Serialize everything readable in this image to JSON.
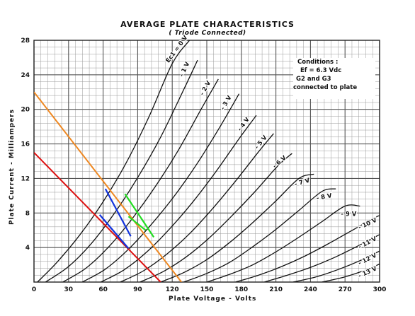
{
  "chart_data": {
    "type": "line",
    "title": "AVERAGE PLATE CHARACTERISTICS",
    "subtitle": "( Triode Connected)",
    "xlabel": "Plate Voltage - Volts",
    "ylabel": "Plate Current - Milliampers",
    "xlim": [
      0,
      300
    ],
    "ylim": [
      0,
      28
    ],
    "xticks": [
      "0",
      "30",
      "60",
      "90",
      "120",
      "150",
      "180",
      "210",
      "240",
      "270",
      "300"
    ],
    "yticks": [
      "4",
      "8",
      "12",
      "16",
      "20",
      "24",
      "28"
    ],
    "grid": true,
    "conditions": [
      "Conditions :",
      "Ef = 6.3 Vdc",
      "G2 and G3",
      "connected to plate"
    ],
    "series": [
      {
        "name": "Ec1 = 0 V",
        "x": [
          3,
          20,
          40,
          60,
          80,
          100,
          120,
          135
        ],
        "y": [
          0,
          2.3,
          5.5,
          9.3,
          13.8,
          19.2,
          25.3,
          28
        ]
      },
      {
        "name": "- 1 V",
        "x": [
          10,
          30,
          50,
          70,
          90,
          110,
          130,
          142
        ],
        "y": [
          0,
          1.8,
          4.5,
          8.0,
          12.1,
          16.8,
          22.3,
          25.7
        ]
      },
      {
        "name": "- 2 V",
        "x": [
          25,
          45,
          65,
          85,
          105,
          125,
          145,
          160
        ],
        "y": [
          0,
          1.6,
          4.1,
          7.3,
          11.0,
          15.2,
          20.0,
          23.5
        ]
      },
      {
        "name": "- 3 V",
        "x": [
          42,
          62,
          82,
          102,
          122,
          142,
          162,
          178
        ],
        "y": [
          0,
          1.5,
          3.8,
          6.7,
          10.0,
          13.8,
          18.1,
          21.8
        ]
      },
      {
        "name": "- 4 V",
        "x": [
          58,
          78,
          98,
          118,
          138,
          158,
          178,
          193
        ],
        "y": [
          0,
          1.4,
          3.5,
          6.2,
          9.3,
          12.8,
          16.6,
          19.3
        ]
      },
      {
        "name": "- 5 V",
        "x": [
          75,
          95,
          115,
          135,
          155,
          175,
          195,
          208
        ],
        "y": [
          0,
          1.3,
          3.2,
          5.6,
          8.5,
          11.7,
          15.1,
          17.2
        ]
      },
      {
        "name": "- 6 V",
        "x": [
          92,
          112,
          132,
          152,
          172,
          192,
          212,
          224
        ],
        "y": [
          0,
          1.2,
          2.9,
          5.1,
          7.7,
          10.5,
          13.5,
          14.9
        ]
      },
      {
        "name": "- 7 V",
        "x": [
          110,
          130,
          150,
          170,
          190,
          210,
          230,
          243
        ],
        "y": [
          0,
          1.1,
          2.6,
          4.6,
          6.9,
          9.4,
          12.0,
          12.5
        ]
      },
      {
        "name": "- 8 V",
        "x": [
          130,
          150,
          170,
          190,
          210,
          230,
          250,
          262
        ],
        "y": [
          0,
          1.0,
          2.3,
          4.1,
          6.1,
          8.3,
          10.5,
          10.8
        ]
      },
      {
        "name": "- 9 V",
        "x": [
          150,
          170,
          190,
          210,
          230,
          250,
          270,
          283
        ],
        "y": [
          0,
          0.9,
          2.0,
          3.5,
          5.2,
          7.0,
          8.8,
          8.8
        ]
      },
      {
        "name": "- 10 V",
        "x": [
          175,
          195,
          215,
          235,
          255,
          275,
          295,
          300
        ],
        "y": [
          0,
          0.8,
          1.8,
          3.0,
          4.4,
          5.9,
          7.4,
          7.7
        ]
      },
      {
        "name": "- 11 V",
        "x": [
          200,
          220,
          240,
          260,
          280,
          300
        ],
        "y": [
          0,
          0.8,
          1.7,
          2.8,
          4.1,
          5.5
        ]
      },
      {
        "name": "- 12 V",
        "x": [
          225,
          245,
          265,
          285,
          300
        ],
        "y": [
          0,
          0.6,
          1.5,
          2.6,
          3.6
        ]
      },
      {
        "name": "- 13 V",
        "x": [
          250,
          270,
          290,
          300
        ],
        "y": [
          0,
          0.6,
          1.5,
          2.1
        ]
      }
    ],
    "load_lines": [
      {
        "color": "#dd1111",
        "x": [
          0,
          110
        ],
        "y": [
          15,
          0
        ]
      },
      {
        "color": "#ee8822",
        "x": [
          0,
          128
        ],
        "y": [
          22,
          0
        ]
      }
    ],
    "overlays": [
      {
        "color": "#1133dd",
        "x": [
          62,
          84
        ],
        "y": [
          10.8,
          5.3
        ]
      },
      {
        "color": "#1133dd",
        "x": [
          57,
          82
        ],
        "y": [
          7.8,
          3.9
        ]
      },
      {
        "color": "#22dd22",
        "x": [
          79,
          104
        ],
        "y": [
          10.2,
          5.2
        ]
      },
      {
        "color": "#22dd22",
        "x": [
          82,
          97
        ],
        "y": [
          7.6,
          6.0
        ]
      }
    ]
  },
  "colors": {
    "grid_major": "#555555",
    "grid_minor": "#9a9a9a",
    "curve": "#111111"
  }
}
